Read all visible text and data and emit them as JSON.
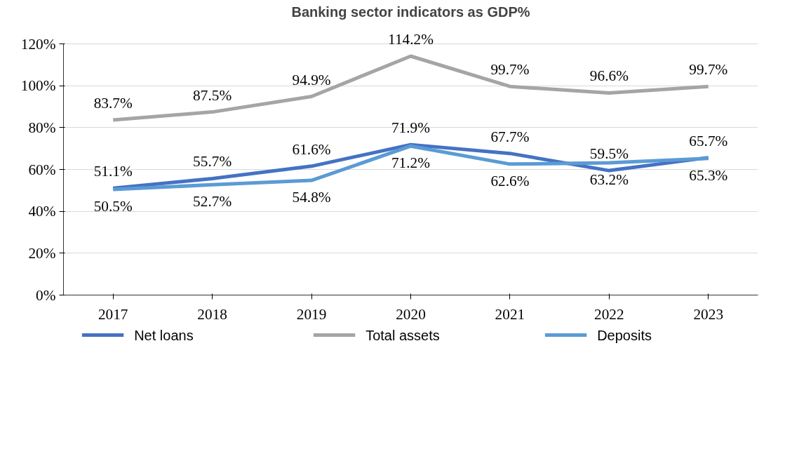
{
  "chart_data": {
    "type": "line",
    "title": "Banking sector indicators as GDP%",
    "categories": [
      "2017",
      "2018",
      "2019",
      "2020",
      "2021",
      "2022",
      "2023"
    ],
    "series": [
      {
        "name": "Net loans",
        "color": "#4472c4",
        "values": [
          51.1,
          55.7,
          61.6,
          71.9,
          67.7,
          59.5,
          65.7
        ],
        "value_labels": [
          "51.1%",
          "55.7%",
          "61.6%",
          "71.9%",
          "67.7%",
          "59.5%",
          "65.7%"
        ]
      },
      {
        "name": "Total assets",
        "color": "#a5a5a5",
        "values": [
          83.7,
          87.5,
          94.9,
          114.2,
          99.7,
          96.6,
          99.7
        ],
        "value_labels": [
          "83.7%",
          "87.5%",
          "94.9%",
          "114.2%",
          "99.7%",
          "96.6%",
          "99.7%"
        ]
      },
      {
        "name": "Deposits",
        "color": "#5b9bd5",
        "values": [
          50.5,
          52.7,
          54.8,
          71.2,
          62.6,
          63.2,
          65.3
        ],
        "value_labels": [
          "50.5%",
          "52.7%",
          "54.8%",
          "71.2%",
          "62.6%",
          "63.2%",
          "65.3%"
        ]
      }
    ],
    "ylim": [
      0,
      120
    ],
    "yticks": [
      {
        "value": 0,
        "label": "0%"
      },
      {
        "value": 20,
        "label": "20%"
      },
      {
        "value": 40,
        "label": "40%"
      },
      {
        "value": 60,
        "label": "60%"
      },
      {
        "value": 80,
        "label": "80%"
      },
      {
        "value": 100,
        "label": "100%"
      },
      {
        "value": 120,
        "label": "120%"
      }
    ],
    "grid": "y",
    "legend": "bottom",
    "marker": "none",
    "line_style": "solid"
  }
}
